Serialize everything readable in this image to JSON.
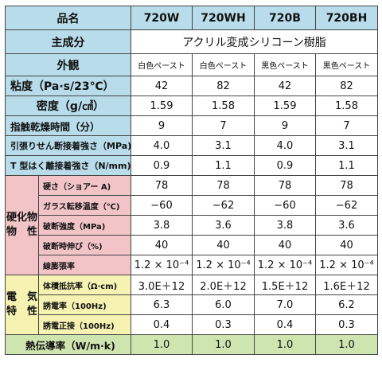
{
  "table": {
    "header": {
      "label": "品名",
      "products": [
        "720W",
        "720WH",
        "720B",
        "720BH"
      ]
    },
    "main_component": {
      "label": "主成分",
      "value": "アクリル変成シリコーン樹脂"
    },
    "appearance": {
      "label": "外観",
      "values": [
        "白色ペースト",
        "白色ペースト",
        "黒色ペースト",
        "黒色ペースト"
      ]
    },
    "rows_top": [
      {
        "label": "粘度（Pa·s/23℃）",
        "values": [
          "42",
          "82",
          "42",
          "82"
        ]
      },
      {
        "label": "密度（g/㎤）",
        "values": [
          "1.59",
          "1.58",
          "1.59",
          "1.58"
        ]
      },
      {
        "label": "指触乾燥時間（分）",
        "values": [
          "9",
          "7",
          "9",
          "7"
        ]
      },
      {
        "label": "引張りせん断接着強さ（MPa)",
        "values": [
          "4.0",
          "3.1",
          "4.0",
          "3.1"
        ]
      },
      {
        "label": "T 型はく離接着強さ（N/mm)",
        "values": [
          "0.9",
          "1.1",
          "0.9",
          "1.1"
        ]
      }
    ],
    "cured": {
      "group_label_line1": "硬化物",
      "group_label_line2": "物　性",
      "rows": [
        {
          "label": "硬さ（ショアー A)",
          "values": [
            "78",
            "78",
            "78",
            "78"
          ]
        },
        {
          "label": "ガラス転移温度（℃)",
          "values": [
            "−60",
            "−62",
            "−60",
            "−62"
          ]
        },
        {
          "label": "破断強度（MPa)",
          "values": [
            "3.8",
            "3.6",
            "3.8",
            "3.6"
          ]
        },
        {
          "label": "破断時伸び（%)",
          "values": [
            "40",
            "40",
            "40",
            "40"
          ]
        },
        {
          "label": "線膨張率",
          "values": [
            "1.2 × 10⁻⁴",
            "1.2 × 10⁻⁴",
            "1.2 × 10⁻⁴",
            "1.2 × 10⁻⁴"
          ]
        }
      ]
    },
    "electrical": {
      "group_label_line1": "電　気",
      "group_label_line2": "特　性",
      "rows": [
        {
          "label": "体積抵抗率（Ω·cm)",
          "values": [
            "3.0E＋12",
            "2.0E＋12",
            "1.5E＋12",
            "1.6E＋12"
          ]
        },
        {
          "label": "誘電率（100Hz)",
          "values": [
            "6.3",
            "6.0",
            "7.0",
            "6.2"
          ]
        },
        {
          "label": "誘電正接（100Hz)",
          "values": [
            "0.4",
            "0.3",
            "0.4",
            "0.3"
          ]
        }
      ]
    },
    "thermal": {
      "label": "熱伝導率（W/m·k)",
      "values": [
        "1.0",
        "1.0",
        "1.0",
        "1.0"
      ]
    }
  },
  "colors": {
    "blue": "#b8dcea",
    "pink": "#f2c4c8",
    "yellow": "#f6f2b2",
    "green": "#cfe5b0"
  }
}
